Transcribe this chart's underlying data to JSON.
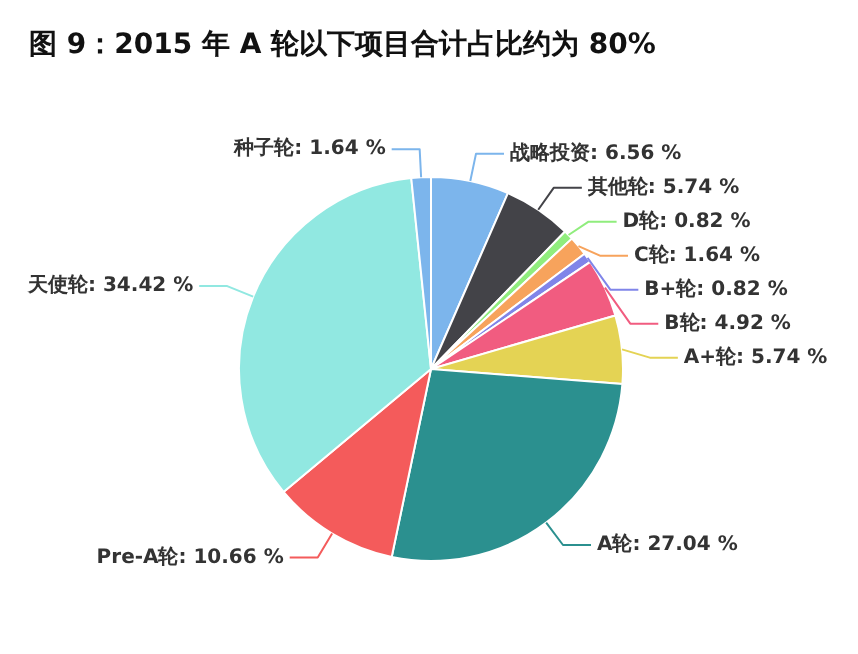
{
  "chart_data": {
    "type": "pie",
    "title": "图 9：2015 年 A 轮以下项目合计占比约为 80%",
    "categories": [
      "战略投资",
      "其他轮",
      "D轮",
      "C轮",
      "B+轮",
      "B轮",
      "A+轮",
      "A轮",
      "Pre-A轮",
      "天使轮",
      "种子轮"
    ],
    "values": [
      6.56,
      5.74,
      0.82,
      1.64,
      0.82,
      4.92,
      5.74,
      27.04,
      10.66,
      34.42,
      1.64
    ],
    "value_labels": [
      "6.56 %",
      "5.74 %",
      "0.82 %",
      "1.64 %",
      "0.82 %",
      "4.92 %",
      "5.74 %",
      "27.04 %",
      "10.66 %",
      "34.42 %",
      "1.64 %"
    ],
    "colors": [
      "#7cb5ec",
      "#434348",
      "#90ed7d",
      "#f7a35c",
      "#8085e9",
      "#f15c80",
      "#e4d354",
      "#2b908f",
      "#f45b5b",
      "#91e8e1",
      "#7cb5ec"
    ]
  }
}
